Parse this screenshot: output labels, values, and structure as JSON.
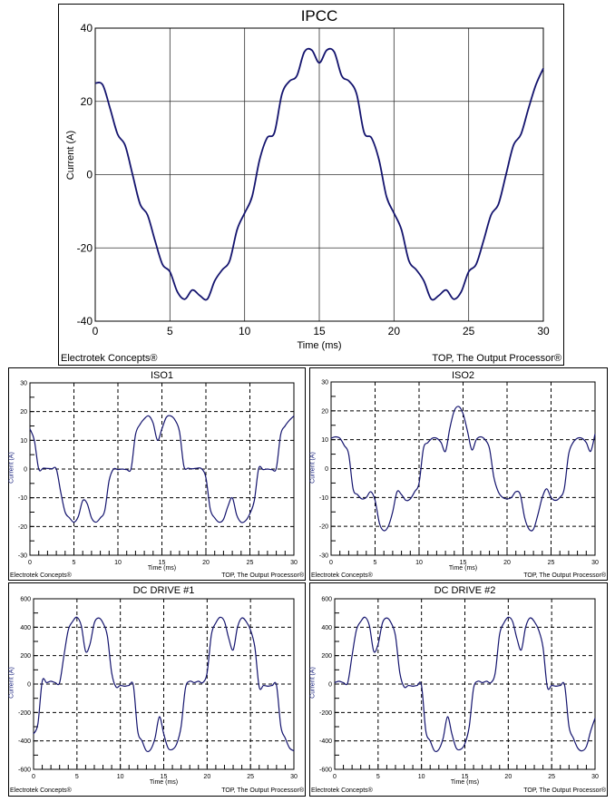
{
  "chart_data": [
    {
      "type": "line",
      "title": "IPCC",
      "xlabel": "Time (ms)",
      "ylabel": "Current (A)",
      "xlim": [
        0,
        30
      ],
      "ylim": [
        -40,
        40
      ],
      "xticks": [
        0,
        5,
        10,
        15,
        20,
        25,
        30
      ],
      "yticks": [
        -40,
        -20,
        0,
        20,
        40
      ],
      "grid": "solid",
      "footer_left": "Electrotek Concepts®",
      "footer_right": "TOP, The Output Processor®",
      "x_start": 0,
      "x_step": 0.5,
      "values": [
        25,
        24.5,
        18,
        11,
        8,
        0,
        -8,
        -11,
        -18,
        -24.5,
        -26.5,
        -32,
        -34,
        -31.5,
        -33,
        -34,
        -29,
        -26,
        -23.5,
        -15,
        -10.5,
        -6,
        4,
        10,
        11.5,
        22,
        25.5,
        27,
        33.5,
        34,
        30.5,
        34,
        33.5,
        27,
        25.5,
        22,
        11.5,
        10,
        4,
        -6,
        -10.5,
        -15,
        -23.5,
        -26,
        -29,
        -34,
        -33,
        -31.5,
        -34,
        -32,
        -26.5,
        -24.5,
        -18,
        -11,
        -8,
        0,
        8,
        11,
        18,
        24.5,
        29
      ],
      "line_color": "#14146e"
    },
    {
      "type": "line",
      "title": "ISO1",
      "xlabel": "Time (ms)",
      "ylabel": "Current (A)",
      "xlim": [
        0,
        30
      ],
      "ylim": [
        -30,
        30
      ],
      "xticks": [
        0,
        5,
        10,
        15,
        20,
        25,
        30
      ],
      "yticks": [
        -30,
        -20,
        -10,
        0,
        10,
        20,
        30
      ],
      "grid": "dashed",
      "footer_left": "Electrotek Concepts®",
      "footer_right": "TOP, The Output Processor®",
      "x_start": 0,
      "x_step": 0.5,
      "values": [
        14,
        10,
        0,
        0.3,
        0.2,
        0.1,
        0,
        -8,
        -15,
        -17,
        -18.5,
        -16.5,
        -11,
        -12,
        -17,
        -18.5,
        -17,
        -14.5,
        -4,
        0,
        -0.2,
        0,
        -0.2,
        0.2,
        12,
        15.5,
        17.5,
        18.5,
        16,
        10,
        14,
        18,
        18.5,
        17,
        13,
        1,
        0.3,
        0.1,
        0.3,
        0.1,
        -3,
        -14,
        -17,
        -18.5,
        -17.5,
        -13,
        -10,
        -16,
        -18.5,
        -18,
        -15.5,
        -11,
        0.2,
        -0.2,
        0,
        -0.2,
        0.3,
        12,
        15,
        17,
        18.5
      ],
      "line_color": "#14146e"
    },
    {
      "type": "line",
      "title": "ISO2",
      "xlabel": "Time (ms)",
      "ylabel": "Current (A)",
      "xlim": [
        0,
        30
      ],
      "ylim": [
        -30,
        30
      ],
      "xticks": [
        0,
        5,
        10,
        15,
        20,
        25,
        30
      ],
      "yticks": [
        -30,
        -20,
        -10,
        0,
        10,
        20,
        30
      ],
      "grid": "dashed",
      "footer_left": "Electrotek Concepts®",
      "footer_right": "TOP, The Output Processor®",
      "x_start": 0,
      "x_step": 0.5,
      "values": [
        10.5,
        11,
        10.5,
        8,
        5,
        -7,
        -9,
        -10.5,
        -10,
        -8,
        -11,
        -19,
        -21.5,
        -20,
        -15,
        -8,
        -9,
        -11,
        -10.5,
        -8,
        -5,
        7,
        9,
        10.5,
        10.5,
        9,
        6,
        14,
        20,
        21.5,
        19,
        13,
        6.5,
        10,
        11,
        10,
        7,
        -3,
        -8,
        -10,
        -10.5,
        -10,
        -8,
        -9,
        -17,
        -21,
        -21,
        -16,
        -10,
        -7,
        -10,
        -11,
        -10,
        -7,
        5,
        9,
        10.5,
        10.5,
        9,
        6,
        12
      ],
      "line_color": "#14146e"
    },
    {
      "type": "line",
      "title": "DC DRIVE #1",
      "xlabel": "Time (ms)",
      "ylabel": "Current (A)",
      "xlim": [
        0,
        30
      ],
      "ylim": [
        -600,
        600
      ],
      "xticks": [
        0,
        5,
        10,
        15,
        20,
        25,
        30
      ],
      "yticks": [
        -600,
        -400,
        -200,
        0,
        200,
        400,
        600
      ],
      "grid": "dashed",
      "footer_left": "Electrotek Concepts®",
      "footer_right": "TOP, The Output Processor®",
      "x_start": 0,
      "x_step": 0.5,
      "values": [
        -350,
        -280,
        20,
        10,
        20,
        10,
        10,
        200,
        380,
        440,
        470,
        410,
        230,
        280,
        430,
        465,
        430,
        340,
        80,
        -20,
        -10,
        -15,
        -10,
        -10,
        -330,
        -400,
        -470,
        -460,
        -380,
        -230,
        -350,
        -450,
        -460,
        -420,
        -300,
        -30,
        20,
        10,
        20,
        10,
        80,
        350,
        430,
        470,
        440,
        320,
        240,
        400,
        465,
        440,
        380,
        260,
        -20,
        -10,
        -15,
        -10,
        -10,
        -300,
        -380,
        -450,
        -470
      ],
      "line_color": "#14146e"
    },
    {
      "type": "line",
      "title": "DC DRIVE #2",
      "xlabel": "Time (ms)",
      "ylabel": "Current (A)",
      "xlim": [
        0,
        30
      ],
      "ylim": [
        -600,
        600
      ],
      "xticks": [
        0,
        5,
        10,
        15,
        20,
        25,
        30
      ],
      "yticks": [
        -600,
        -400,
        -200,
        0,
        200,
        400,
        600
      ],
      "grid": "dashed",
      "footer_left": "Electrotek Concepts®",
      "footer_right": "TOP, The Output Processor®",
      "x_start": 0,
      "x_step": 0.5,
      "values": [
        10,
        20,
        10,
        10,
        200,
        380,
        440,
        470,
        410,
        230,
        280,
        430,
        465,
        430,
        340,
        80,
        -20,
        -10,
        -15,
        -10,
        -10,
        -330,
        -400,
        -470,
        -460,
        -380,
        -230,
        -350,
        -450,
        -460,
        -420,
        -300,
        -30,
        20,
        10,
        20,
        10,
        80,
        350,
        430,
        470,
        440,
        320,
        240,
        400,
        465,
        440,
        380,
        260,
        -20,
        -10,
        -15,
        -10,
        -10,
        -300,
        -380,
        -450,
        -470,
        -440,
        -330,
        -240
      ],
      "line_color": "#14146e"
    }
  ]
}
